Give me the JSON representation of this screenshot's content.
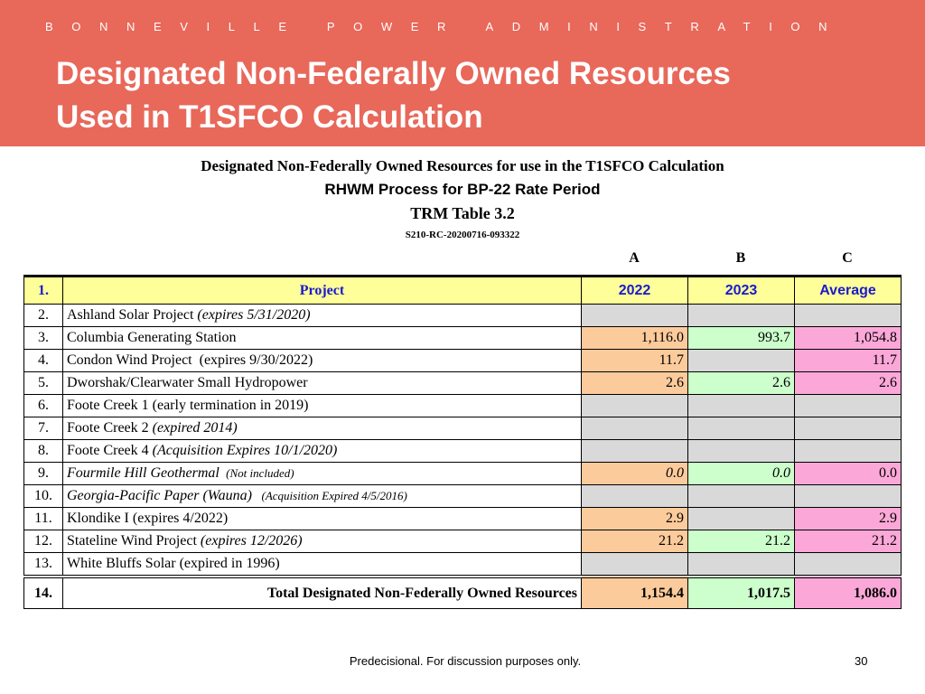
{
  "header": {
    "org": "BONNEVILLE POWER ADMINISTRATION",
    "title_lines": [
      "Designated Non-Federally Owned Resources",
      "Used in T1SFCO Calculation"
    ]
  },
  "table_heading": {
    "line1": "Designated Non-Federally Owned Resources for use in the T1SFCO Calculation",
    "line2": "RHWM Process for BP-22 Rate Period",
    "line3": "TRM Table 3.2",
    "line4": "S210-RC-20200716-093322"
  },
  "table": {
    "column_letters": [
      "A",
      "B",
      "C"
    ],
    "header": {
      "num": "1.",
      "project": "Project",
      "cols": [
        "2022",
        "2023",
        "Average"
      ]
    },
    "rows": [
      {
        "num": "2.",
        "project": [
          {
            "text": "Ashland Solar Project "
          },
          {
            "text": "(expires 5/31/2020)",
            "italic": true
          }
        ],
        "values": [
          null,
          null,
          null
        ]
      },
      {
        "num": "3.",
        "project": [
          {
            "text": "Columbia Generating Station"
          }
        ],
        "values": [
          "1,116.0",
          "993.7",
          "1,054.8"
        ]
      },
      {
        "num": "4.",
        "project": [
          {
            "text": "Condon Wind Project  (expires 9/30/2022)"
          }
        ],
        "values": [
          "11.7",
          null,
          "11.7"
        ]
      },
      {
        "num": "5.",
        "project": [
          {
            "text": "Dworshak/Clearwater Small Hydropower"
          }
        ],
        "values": [
          "2.6",
          "2.6",
          "2.6"
        ]
      },
      {
        "num": "6.",
        "project": [
          {
            "text": "Foote Creek 1 (early termination in 2019)"
          }
        ],
        "values": [
          null,
          null,
          null
        ]
      },
      {
        "num": "7.",
        "project": [
          {
            "text": "Foote Creek 2 "
          },
          {
            "text": "(expired 2014)",
            "italic": true
          }
        ],
        "values": [
          null,
          null,
          null
        ]
      },
      {
        "num": "8.",
        "project": [
          {
            "text": "Foote Creek 4 "
          },
          {
            "text": "(Acquisition Expires 10/1/2020)",
            "italic": true
          }
        ],
        "values": [
          null,
          null,
          null
        ]
      },
      {
        "num": "9.",
        "project": [
          {
            "text": "Fourmile Hill Geothermal ",
            "italic": true
          },
          {
            "text": " (Not included)",
            "italic": true,
            "small": true
          }
        ],
        "values": [
          "0.0",
          "0.0",
          "0.0"
        ],
        "value_italic": [
          true,
          true,
          false
        ]
      },
      {
        "num": "10.",
        "project": [
          {
            "text": "Georgia-Pacific Paper (Wauna) ",
            "italic": true
          },
          {
            "text": "  (Acquisition Expired 4/5/2016)",
            "italic": true,
            "small": true
          }
        ],
        "values": [
          null,
          null,
          null
        ]
      },
      {
        "num": "11.",
        "project": [
          {
            "text": "Klondike I (expires 4/2022)"
          }
        ],
        "values": [
          "2.9",
          null,
          "2.9"
        ]
      },
      {
        "num": "12.",
        "project": [
          {
            "text": "Stateline Wind Project "
          },
          {
            "text": "(expires 12/2026)",
            "italic": true
          }
        ],
        "values": [
          "21.2",
          "21.2",
          "21.2"
        ]
      },
      {
        "num": "13.",
        "project": [
          {
            "text": "White Bluffs Solar (expired in 1996)"
          }
        ],
        "values": [
          null,
          null,
          null
        ]
      }
    ],
    "total": {
      "num": "14.",
      "label": "Total Designated Non-Federally Owned Resources",
      "values": [
        "1,154.4",
        "1,017.5",
        "1,086.0"
      ]
    }
  },
  "footer": {
    "note": "Predecisional. For discussion purposes only.",
    "page": "30"
  }
}
